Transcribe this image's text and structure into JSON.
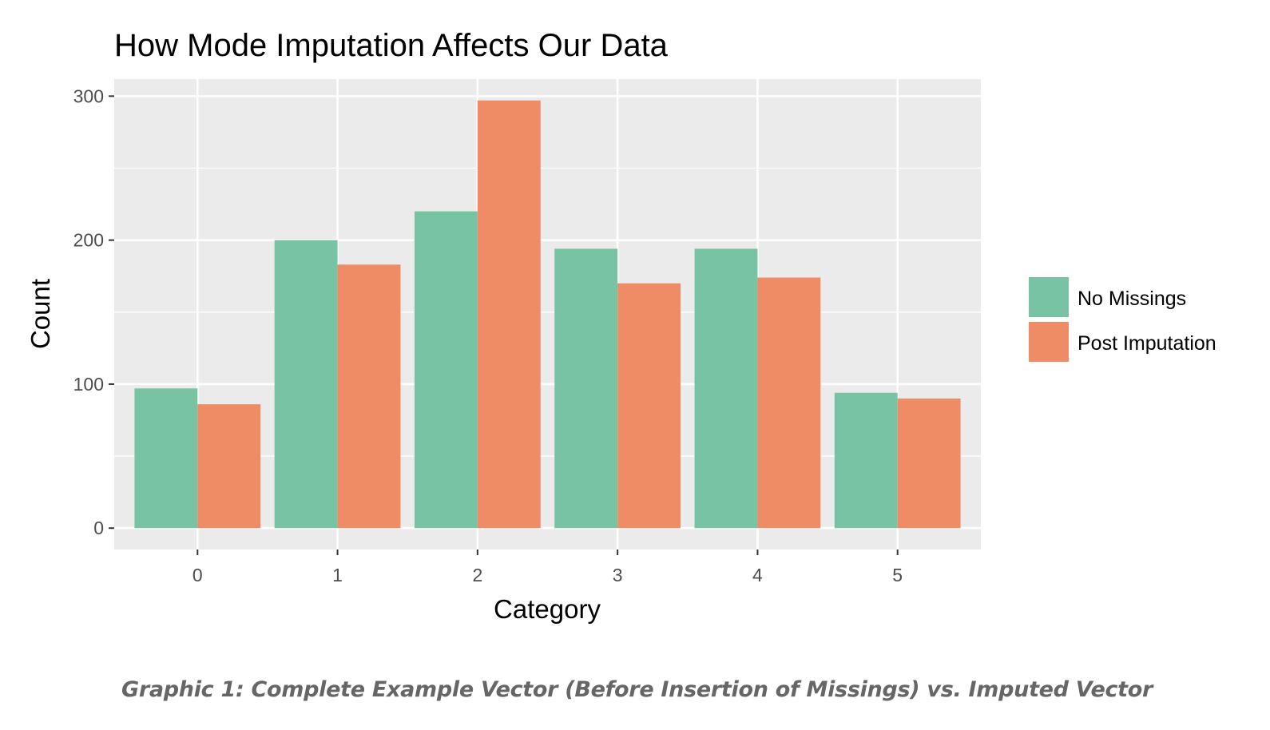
{
  "chart_data": {
    "type": "bar",
    "title": "How Mode Imputation Affects Our Data",
    "xlabel": "Category",
    "ylabel": "Count",
    "categories": [
      "0",
      "1",
      "2",
      "3",
      "4",
      "5"
    ],
    "series": [
      {
        "name": "No Missings",
        "color": "#79c3a5",
        "values": [
          97,
          200,
          220,
          194,
          194,
          94
        ]
      },
      {
        "name": "Post Imputation",
        "color": "#f08c65",
        "values": [
          86,
          183,
          297,
          170,
          174,
          90
        ]
      }
    ],
    "yticks": [
      0,
      100,
      200,
      300
    ],
    "ytick_labels": [
      "0",
      "100",
      "200",
      "300"
    ],
    "minor_yticks": [
      50,
      150,
      250
    ],
    "ylim": [
      -14.85,
      311.85
    ],
    "grid": true,
    "legend_position": "right",
    "panel_color": "#ebebeb"
  },
  "caption": "Graphic 1: Complete Example Vector (Before Insertion of Missings) vs. Imputed Vector"
}
